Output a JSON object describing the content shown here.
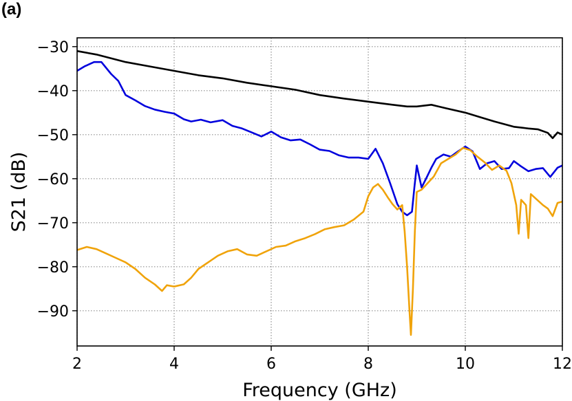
{
  "panel_label": "(a)",
  "chart_data": {
    "type": "line",
    "xlabel": "Frequency (GHz)",
    "ylabel": "S21 (dB)",
    "xlim": [
      2,
      12
    ],
    "ylim": [
      -98,
      -28
    ],
    "xticks": [
      2,
      4,
      6,
      8,
      10,
      12
    ],
    "yticks": [
      -90,
      -80,
      -70,
      -60,
      -50,
      -40,
      -30
    ],
    "xtick_labels": [
      "2",
      "4",
      "6",
      "8",
      "10",
      "12"
    ],
    "ytick_labels": [
      "−90",
      "−80",
      "−70",
      "−60",
      "−50",
      "−40",
      "−30"
    ],
    "grid": true,
    "series": [
      {
        "color": "#000000",
        "x": [
          2.0,
          2.4,
          3.0,
          3.5,
          4.0,
          4.5,
          5.0,
          5.5,
          6.0,
          6.5,
          7.0,
          7.5,
          8.0,
          8.5,
          8.8,
          9.0,
          9.3,
          9.6,
          10.0,
          10.3,
          10.6,
          11.0,
          11.3,
          11.5,
          11.7,
          11.8,
          11.9,
          12.0
        ],
        "y": [
          -31,
          -31.8,
          -33.5,
          -34.5,
          -35.5,
          -36.5,
          -37.2,
          -38.2,
          -39,
          -39.8,
          -41,
          -41.8,
          -42.5,
          -43.2,
          -43.6,
          -43.6,
          -43.2,
          -44,
          -45,
          -46,
          -47,
          -48.2,
          -48.6,
          -48.8,
          -49.6,
          -50.8,
          -49.5,
          -50
        ]
      },
      {
        "color": "#0000dd",
        "x": [
          2.0,
          2.15,
          2.35,
          2.5,
          2.7,
          2.85,
          3.0,
          3.2,
          3.4,
          3.6,
          3.8,
          4.0,
          4.2,
          4.35,
          4.55,
          4.75,
          5.0,
          5.2,
          5.4,
          5.6,
          5.8,
          6.0,
          6.2,
          6.4,
          6.6,
          6.8,
          7.0,
          7.2,
          7.4,
          7.6,
          7.8,
          8.0,
          8.15,
          8.3,
          8.45,
          8.6,
          8.7,
          8.8,
          8.9,
          8.95,
          9.0,
          9.1,
          9.2,
          9.3,
          9.4,
          9.55,
          9.7,
          9.85,
          10.0,
          10.15,
          10.3,
          10.45,
          10.6,
          10.75,
          10.9,
          11.0,
          11.15,
          11.3,
          11.45,
          11.6,
          11.75,
          11.9,
          12.0
        ],
        "y": [
          -35.5,
          -34.5,
          -33.5,
          -33.5,
          -36.2,
          -37.8,
          -41,
          -42.2,
          -43.5,
          -44.3,
          -44.8,
          -45.2,
          -46.5,
          -47,
          -46.6,
          -47.2,
          -46.7,
          -48,
          -48.6,
          -49.5,
          -50.4,
          -49.3,
          -50.6,
          -51.3,
          -51.1,
          -52.2,
          -53.4,
          -53.7,
          -54.7,
          -55.2,
          -55.2,
          -55.5,
          -53.2,
          -56.5,
          -61,
          -65.8,
          -67.5,
          -68.3,
          -67.5,
          -62,
          -57,
          -62,
          -59.8,
          -57.5,
          -55.5,
          -54.5,
          -55,
          -53.8,
          -52.7,
          -53.8,
          -57.8,
          -56.5,
          -56,
          -57.8,
          -57.6,
          -56,
          -57.2,
          -58.3,
          -57.8,
          -57.6,
          -59.6,
          -57.5,
          -57
        ]
      },
      {
        "color": "#f0a30a",
        "x": [
          2.0,
          2.2,
          2.4,
          2.6,
          2.8,
          3.0,
          3.2,
          3.4,
          3.6,
          3.75,
          3.85,
          4.0,
          4.2,
          4.35,
          4.5,
          4.7,
          4.9,
          5.1,
          5.3,
          5.5,
          5.7,
          5.9,
          6.1,
          6.3,
          6.5,
          6.7,
          6.9,
          7.1,
          7.3,
          7.5,
          7.7,
          7.9,
          8.0,
          8.1,
          8.2,
          8.3,
          8.4,
          8.5,
          8.6,
          8.7,
          8.75,
          8.8,
          8.85,
          8.88,
          8.92,
          8.96,
          9.0,
          9.1,
          9.2,
          9.35,
          9.5,
          9.65,
          9.8,
          9.95,
          10.1,
          10.25,
          10.4,
          10.55,
          10.7,
          10.85,
          10.95,
          11.05,
          11.1,
          11.15,
          11.25,
          11.3,
          11.35,
          11.45,
          11.6,
          11.7,
          11.8,
          11.9,
          12.0
        ],
        "y": [
          -76.2,
          -75.5,
          -76,
          -77,
          -78,
          -79,
          -80.5,
          -82.5,
          -84,
          -85.5,
          -84.2,
          -84.5,
          -84,
          -82.5,
          -80.5,
          -79,
          -77.5,
          -76.5,
          -76,
          -77.2,
          -77.5,
          -76.5,
          -75.5,
          -75.2,
          -74.2,
          -73.5,
          -72.6,
          -71.5,
          -71,
          -70.6,
          -69.3,
          -67.5,
          -64,
          -62,
          -61.2,
          -62.5,
          -64.2,
          -65.8,
          -67,
          -66,
          -72,
          -80,
          -90,
          -95.5,
          -85,
          -72,
          -63,
          -62.5,
          -61.3,
          -59.5,
          -56.5,
          -55.5,
          -54.5,
          -53,
          -53.5,
          -55,
          -56.3,
          -58,
          -57,
          -58.2,
          -61,
          -66,
          -72.5,
          -64.8,
          -66,
          -73.5,
          -63.5,
          -64.5,
          -66,
          -66.8,
          -68.5,
          -65.5,
          -65.2
        ]
      }
    ]
  }
}
